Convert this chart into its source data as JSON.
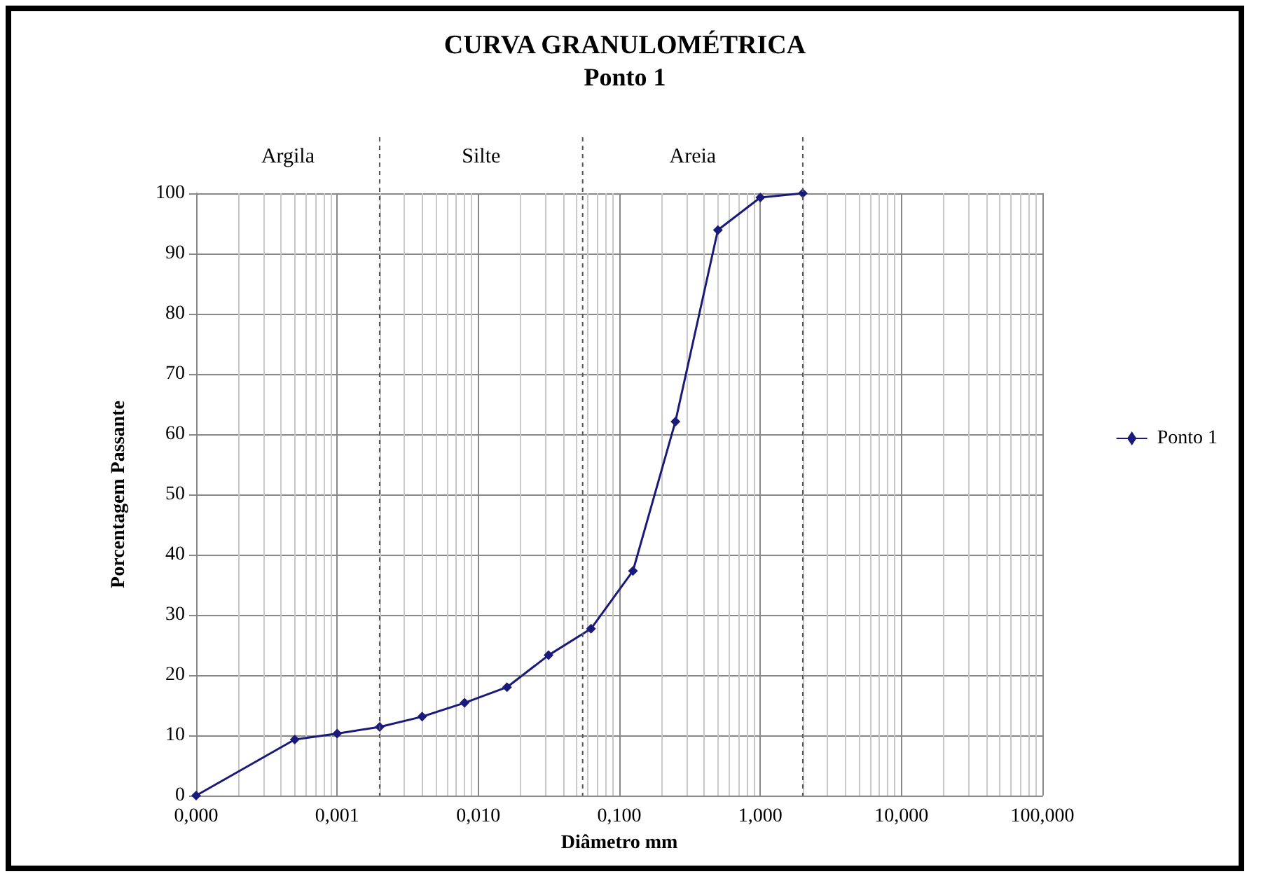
{
  "chart_data": {
    "type": "line",
    "title": "CURVA GRANULOMÉTRICA",
    "subtitle": "Ponto 1",
    "xlabel": "Diâmetro mm",
    "ylabel": "Porcentagem Passante",
    "x": [
      0.0001,
      0.0005,
      0.001,
      0.002,
      0.004,
      0.008,
      0.016,
      0.0315,
      0.063,
      0.125,
      0.25,
      0.5,
      1,
      2
    ],
    "series": [
      {
        "name": "Ponto 1",
        "color": "#1a1a7a",
        "values": [
          0,
          9.3,
          10.3,
          11.4,
          13.1,
          15.4,
          18.0,
          23.3,
          27.7,
          37.3,
          62.1,
          93.9,
          99.3,
          100
        ]
      }
    ],
    "log": "x",
    "xlim": [
      0.0001,
      100
    ],
    "xticks": [
      {
        "value": 0.0001,
        "label": "0,000"
      },
      {
        "value": 0.001,
        "label": "0,001"
      },
      {
        "value": 0.01,
        "label": "0,010"
      },
      {
        "value": 0.1,
        "label": "0,100"
      },
      {
        "value": 1,
        "label": "1,000"
      },
      {
        "value": 10,
        "label": "10,000"
      },
      {
        "value": 100,
        "label": "100,000"
      }
    ],
    "ylim": [
      0,
      100
    ],
    "yticks": [
      0,
      10,
      20,
      30,
      40,
      50,
      60,
      70,
      80,
      90,
      100
    ],
    "ref_lines": [
      {
        "axis": "x",
        "value": 0.002,
        "line_style": "dashed"
      },
      {
        "axis": "x",
        "value": 0.055,
        "line_style": "dashed"
      },
      {
        "axis": "x",
        "value": 2,
        "line_style": "dashed"
      }
    ],
    "annotations": [
      "Argila",
      "Silte",
      "Areia"
    ],
    "grid": true,
    "legend": "right",
    "marker": "diamond",
    "line_style": "solid"
  }
}
